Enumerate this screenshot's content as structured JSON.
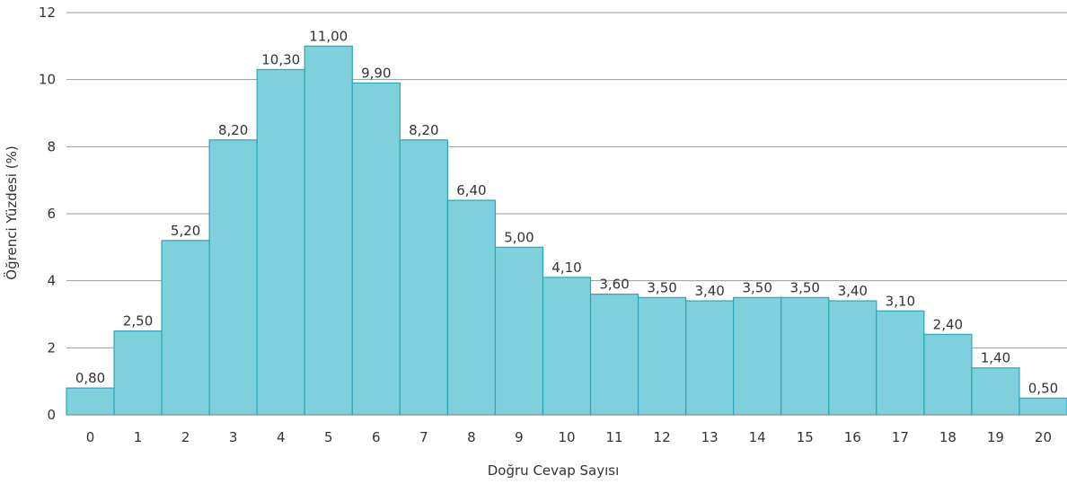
{
  "chart_data": {
    "type": "bar",
    "xlabel": "Doğru Cevap Sayısı",
    "ylabel": "Öğrenci Yüzdesi (%)",
    "categories": [
      "0",
      "1",
      "2",
      "3",
      "4",
      "5",
      "6",
      "7",
      "8",
      "9",
      "10",
      "11",
      "12",
      "13",
      "14",
      "15",
      "16",
      "17",
      "18",
      "19",
      "20"
    ],
    "values": [
      0.8,
      2.5,
      5.2,
      8.2,
      10.3,
      11.0,
      9.9,
      8.2,
      6.4,
      5.0,
      4.1,
      3.6,
      3.5,
      3.4,
      3.5,
      3.5,
      3.4,
      3.1,
      2.4,
      1.4,
      0.5
    ],
    "data_labels": [
      "0,80",
      "2,50",
      "5,20",
      "8,20",
      "10,30",
      "11,00",
      "9,90",
      "8,20",
      "6,40",
      "5,00",
      "4,10",
      "3,60",
      "3,50",
      "3,40",
      "3,50",
      "3,50",
      "3,40",
      "3,10",
      "2,40",
      "1,40",
      "0,50"
    ],
    "yticks": [
      0,
      2,
      4,
      6,
      8,
      10,
      12
    ],
    "ylim": [
      0,
      12
    ],
    "grid": true,
    "legend": "none",
    "colors": {
      "bar_fill": "#7ed0dc",
      "bar_stroke": "#2aa7b7",
      "grid": "#9a9a9a",
      "text": "#333333"
    }
  }
}
